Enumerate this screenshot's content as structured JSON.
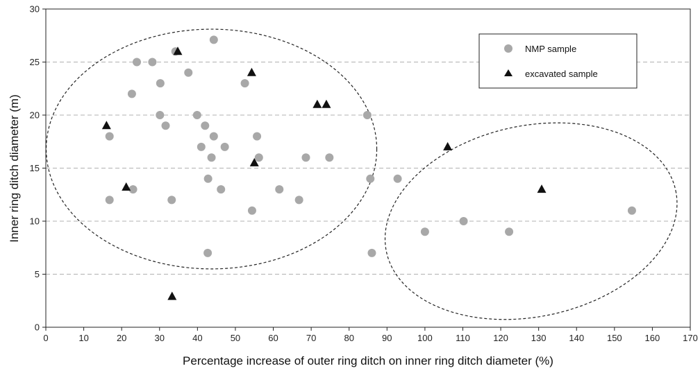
{
  "chart_data": {
    "type": "scatter",
    "xlabel": "Percentage increase of outer ring ditch on inner ring ditch diameter (%)",
    "ylabel": "Inner ring ditch diameter (m)",
    "xlim": [
      0,
      170
    ],
    "ylim": [
      0,
      30
    ],
    "x_ticks": [
      0,
      10,
      20,
      30,
      40,
      50,
      60,
      70,
      80,
      90,
      100,
      110,
      120,
      130,
      140,
      150,
      160,
      170
    ],
    "y_ticks": [
      0,
      5,
      10,
      15,
      20,
      25,
      30
    ],
    "grid": "horizontal dashed",
    "legend_position": "top-right",
    "colors": {
      "nmp": "#a8a8a8",
      "excavated": "#111111",
      "grid": "#b0b0b0",
      "ellipse": "#222222"
    },
    "series": [
      {
        "name": "NMP sample",
        "marker": "circle",
        "points": [
          [
            44.3,
            27.1
          ],
          [
            34.2,
            26.0
          ],
          [
            24.0,
            25.0
          ],
          [
            28.1,
            25.0
          ],
          [
            37.6,
            24.0
          ],
          [
            22.7,
            22.0
          ],
          [
            30.2,
            23.0
          ],
          [
            52.5,
            23.0
          ],
          [
            30.1,
            20.0
          ],
          [
            39.9,
            20.0
          ],
          [
            84.8,
            20.0
          ],
          [
            31.6,
            19.0
          ],
          [
            42.0,
            19.0
          ],
          [
            16.8,
            18.0
          ],
          [
            44.3,
            18.0
          ],
          [
            55.7,
            18.0
          ],
          [
            41.0,
            17.0
          ],
          [
            47.2,
            17.0
          ],
          [
            43.7,
            16.0
          ],
          [
            56.2,
            16.0
          ],
          [
            68.6,
            16.0
          ],
          [
            74.8,
            16.0
          ],
          [
            42.8,
            14.0
          ],
          [
            85.6,
            14.0
          ],
          [
            92.8,
            14.0
          ],
          [
            23.0,
            13.0
          ],
          [
            46.2,
            13.0
          ],
          [
            61.6,
            13.0
          ],
          [
            16.8,
            12.0
          ],
          [
            33.2,
            12.0
          ],
          [
            66.8,
            12.0
          ],
          [
            54.4,
            11.0
          ],
          [
            154.6,
            11.0
          ],
          [
            110.2,
            10.0
          ],
          [
            100.0,
            9.0
          ],
          [
            122.2,
            9.0
          ],
          [
            42.7,
            7.0
          ],
          [
            86.0,
            7.0
          ]
        ]
      },
      {
        "name": "excavated sample",
        "marker": "triangle",
        "points": [
          [
            34.8,
            26.0
          ],
          [
            54.3,
            24.0
          ],
          [
            71.6,
            21.0
          ],
          [
            74.0,
            21.0
          ],
          [
            16.0,
            19.0
          ],
          [
            106.0,
            17.0
          ],
          [
            55.0,
            15.5
          ],
          [
            21.2,
            13.2
          ],
          [
            130.8,
            13.0
          ],
          [
            33.3,
            2.9
          ]
        ]
      }
    ],
    "ellipses": [
      {
        "cx": 43.7,
        "cy": 16.8,
        "rx": 43.6,
        "ry": 11.3
      },
      {
        "cx": 128.0,
        "cy": 10.0,
        "rx": 39.0,
        "ry": 9.0,
        "rotation": -12
      }
    ]
  }
}
